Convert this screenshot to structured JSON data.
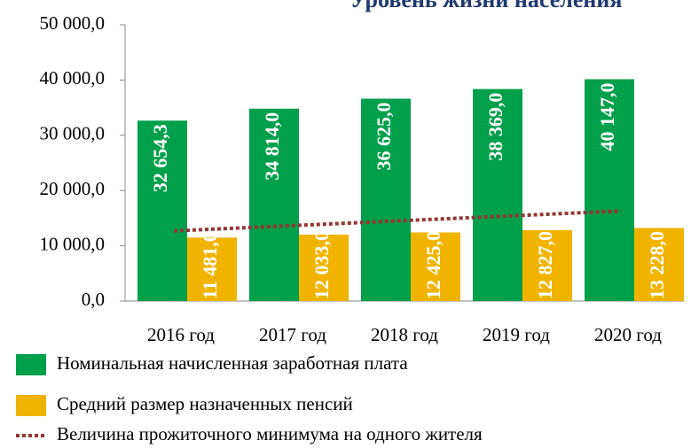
{
  "chart_data": {
    "type": "bar",
    "title": "Уровень жизни населения",
    "categories": [
      "2016 год",
      "2017 год",
      "2018 год",
      "2019 год",
      "2020 год"
    ],
    "series": [
      {
        "name": "Номинальная начисленная заработная плата",
        "type": "bar",
        "color": "#00a04a",
        "values": [
          32654.3,
          34814.0,
          36625.0,
          38369.0,
          40147.0
        ],
        "value_labels": [
          "32 654,3",
          "34 814,0",
          "36 625,0",
          "38 369,0",
          "40 147,0"
        ]
      },
      {
        "name": "Средний размер назначенных пенсий",
        "type": "bar",
        "color": "#f0b400",
        "values": [
          11481.0,
          12033.0,
          12425.0,
          12827.0,
          13228.0
        ],
        "value_labels": [
          "11 481,0",
          "12 033,0",
          "12 425,0",
          "12 827,0",
          "13 228,0"
        ]
      },
      {
        "name": "Величина прожиточного минимума на одного жителя",
        "type": "line",
        "color": "#943634",
        "values": [
          12700,
          13600,
          14500,
          15400,
          16300
        ]
      }
    ],
    "ylim": [
      0,
      50000
    ],
    "yticks": [
      {
        "value": 0,
        "label": "0,0"
      },
      {
        "value": 10000,
        "label": "10 000,0"
      },
      {
        "value": 20000,
        "label": "20 000,0"
      },
      {
        "value": 30000,
        "label": "30 000,0"
      },
      {
        "value": 40000,
        "label": "40 000,0"
      },
      {
        "value": 50000,
        "label": "50 000,0"
      }
    ],
    "grid": false
  }
}
